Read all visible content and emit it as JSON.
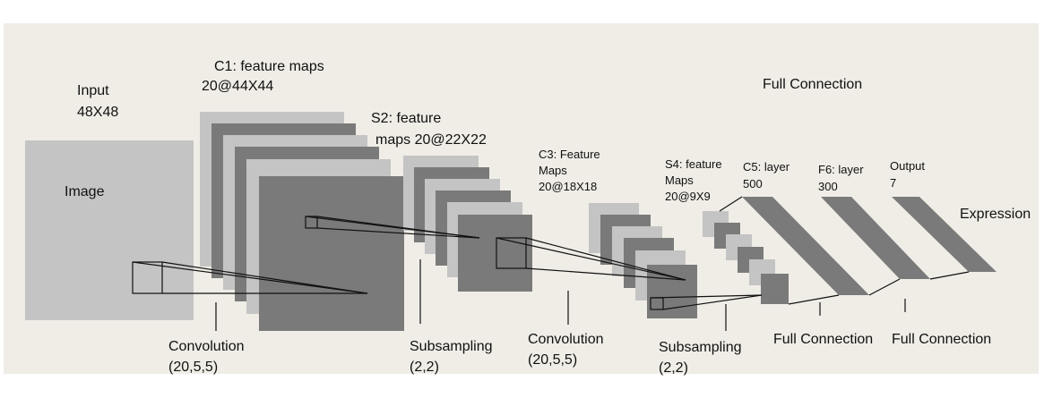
{
  "colors": {
    "background": "#efede6",
    "light_map": "#c4c4c4",
    "dark_map": "#7a7a7a",
    "line": "#111111"
  },
  "input": {
    "title": "Input",
    "size": "48X48",
    "image_label": "Image"
  },
  "c1": {
    "line1": "C1: feature maps",
    "line2": "20@44X44"
  },
  "s2": {
    "line1": "S2: feature",
    "line2": "maps 20@22X22"
  },
  "c3": {
    "line1": "C3: Feature",
    "line2": "Maps",
    "line3": "20@18X18"
  },
  "s4": {
    "line1": "S4: feature",
    "line2": "Maps",
    "line3": "20@9X9"
  },
  "c5": {
    "line1": "C5: layer",
    "line2": "500"
  },
  "f6": {
    "line1": "F6: layer",
    "line2": "300"
  },
  "output": {
    "line1": "Output",
    "line2": "7"
  },
  "full_connection_top": "Full Connection",
  "expression": "Expression",
  "ops": {
    "conv1": {
      "name": "Convolution",
      "params": "(20,5,5)"
    },
    "sub1": {
      "name": "Subsampling",
      "params": "(2,2)"
    },
    "conv2": {
      "name": "Convolution",
      "params": "(20,5,5)"
    },
    "sub2": {
      "name": "Subsampling",
      "params": "(2,2)"
    },
    "fc1": "Full Connection",
    "fc2": "Full Connection"
  }
}
